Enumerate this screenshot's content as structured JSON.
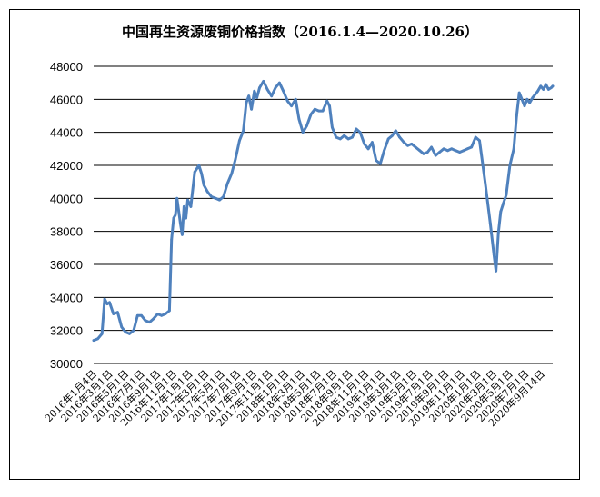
{
  "chart_data": {
    "type": "line",
    "title": "中国再生资源废铜价格指数（2016.1.4—2020.10.26）",
    "xlabel": "",
    "ylabel": "",
    "ylim": [
      30000,
      48000
    ],
    "yticks": [
      30000,
      32000,
      34000,
      36000,
      38000,
      40000,
      42000,
      44000,
      46000,
      48000
    ],
    "grid": "horizontal",
    "legend": "none",
    "line_color": "#4f81bd",
    "x_tick_labels": [
      "2016年1月4日",
      "2016年3月1日",
      "2016年5月1日",
      "2016年7月1日",
      "2016年9月1日",
      "2016年11月1日",
      "2017年1月1日",
      "2017年3月1日",
      "2017年5月1日",
      "2017年7月1日",
      "2017年9月1日",
      "2017年11月1日",
      "2018年1月1日",
      "2018年3月1日",
      "2018年5月1日",
      "2018年7月1日",
      "2018年9月1日",
      "2018年11月1日",
      "2019年1月1日",
      "2019年3月1日",
      "2019年5月1日",
      "2019年7月1日",
      "2019年9月1日",
      "2019年11月1日",
      "2020年1月1日",
      "2020年3月1日",
      "2020年5月1日",
      "2020年7月1日",
      "2020年9月14日"
    ],
    "series": [
      {
        "x": [
          "2016-01-04",
          "2016-01-20",
          "2016-02-05",
          "2016-02-15",
          "2016-02-25",
          "2016-03-05",
          "2016-03-20",
          "2016-04-05",
          "2016-04-20",
          "2016-05-05",
          "2016-05-20",
          "2016-06-05",
          "2016-06-20",
          "2016-07-05",
          "2016-07-20",
          "2016-08-05",
          "2016-08-20",
          "2016-09-05",
          "2016-09-20",
          "2016-10-05",
          "2016-10-20",
          "2016-10-28",
          "2016-11-05",
          "2016-11-12",
          "2016-11-18",
          "2016-11-25",
          "2016-12-01",
          "2016-12-08",
          "2016-12-15",
          "2016-12-22",
          "2016-12-29",
          "2017-01-10",
          "2017-01-25",
          "2017-02-10",
          "2017-02-20",
          "2017-03-01",
          "2017-03-15",
          "2017-03-30",
          "2017-04-15",
          "2017-04-30",
          "2017-05-15",
          "2017-05-30",
          "2017-06-15",
          "2017-06-30",
          "2017-07-15",
          "2017-07-30",
          "2017-08-10",
          "2017-08-20",
          "2017-08-30",
          "2017-09-10",
          "2017-09-20",
          "2017-09-30",
          "2017-10-15",
          "2017-10-30",
          "2017-11-15",
          "2017-11-30",
          "2017-12-15",
          "2017-12-30",
          "2018-01-15",
          "2018-01-30",
          "2018-02-15",
          "2018-02-28",
          "2018-03-15",
          "2018-03-30",
          "2018-04-15",
          "2018-04-30",
          "2018-05-15",
          "2018-05-30",
          "2018-06-15",
          "2018-06-25",
          "2018-07-05",
          "2018-07-20",
          "2018-08-05",
          "2018-08-20",
          "2018-09-05",
          "2018-09-20",
          "2018-10-05",
          "2018-10-20",
          "2018-11-05",
          "2018-11-20",
          "2018-12-05",
          "2018-12-20",
          "2019-01-05",
          "2019-01-20",
          "2019-02-05",
          "2019-02-20",
          "2019-03-05",
          "2019-03-20",
          "2019-04-05",
          "2019-04-20",
          "2019-05-05",
          "2019-05-20",
          "2019-06-05",
          "2019-06-20",
          "2019-07-05",
          "2019-07-20",
          "2019-08-05",
          "2019-08-20",
          "2019-09-05",
          "2019-09-20",
          "2019-10-05",
          "2019-10-20",
          "2019-11-05",
          "2019-11-20",
          "2019-12-05",
          "2019-12-20",
          "2020-01-05",
          "2020-01-20",
          "2020-02-10",
          "2020-03-01",
          "2020-03-15",
          "2020-03-23",
          "2020-04-01",
          "2020-04-10",
          "2020-04-20",
          "2020-05-01",
          "2020-05-15",
          "2020-05-30",
          "2020-06-10",
          "2020-06-20",
          "2020-06-30",
          "2020-07-10",
          "2020-07-20",
          "2020-07-30",
          "2020-08-10",
          "2020-08-20",
          "2020-08-30",
          "2020-09-10",
          "2020-09-20",
          "2020-09-30",
          "2020-10-10",
          "2020-10-20",
          "2020-10-26"
        ],
        "values": [
          31400,
          31500,
          31800,
          33900,
          33600,
          33700,
          33000,
          33100,
          32200,
          31900,
          31800,
          32000,
          32900,
          32900,
          32600,
          32500,
          32700,
          33000,
          32900,
          33000,
          33200,
          37500,
          38800,
          39000,
          40000,
          39200,
          38500,
          37800,
          39500,
          38800,
          39900,
          39500,
          41600,
          42000,
          41500,
          40800,
          40400,
          40100,
          40000,
          39900,
          40100,
          40900,
          41500,
          42400,
          43500,
          44100,
          45800,
          46200,
          45400,
          46500,
          46100,
          46700,
          47100,
          46600,
          46200,
          46700,
          47000,
          46500,
          45900,
          45600,
          46000,
          44800,
          44000,
          44400,
          45100,
          45400,
          45300,
          45300,
          45900,
          45600,
          44300,
          43700,
          43600,
          43800,
          43600,
          43700,
          44200,
          44000,
          43300,
          43000,
          43400,
          42300,
          42100,
          42900,
          43600,
          43800,
          44100,
          43700,
          43400,
          43200,
          43300,
          43100,
          42900,
          42700,
          42800,
          43100,
          42600,
          42800,
          43000,
          42900,
          43000,
          42900,
          42800,
          42900,
          43000,
          43100,
          43700,
          43500,
          41000,
          38500,
          36600,
          35600,
          37900,
          39200,
          39700,
          40200,
          42000,
          43000,
          45000,
          46400,
          46000,
          45600,
          46000,
          45800,
          46100,
          46300,
          46500,
          46800,
          46600,
          46900,
          46600,
          46700,
          46800
        ]
      }
    ]
  }
}
